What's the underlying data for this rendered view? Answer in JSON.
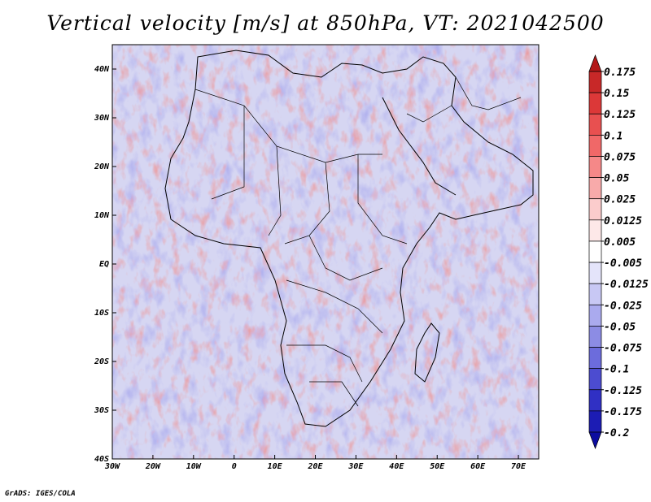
{
  "title": "Vertical velocity [m/s] at 850hPa, VT: 2021042500",
  "footer": "GrADS: IGES/COLA",
  "map": {
    "lon_range": [
      -30,
      75
    ],
    "lat_range": [
      -40,
      45
    ],
    "lon_ticks": [
      {
        "value": -30,
        "label": "30W"
      },
      {
        "value": -20,
        "label": "20W"
      },
      {
        "value": -10,
        "label": "10W"
      },
      {
        "value": 0,
        "label": "0"
      },
      {
        "value": 10,
        "label": "10E"
      },
      {
        "value": 20,
        "label": "20E"
      },
      {
        "value": 30,
        "label": "30E"
      },
      {
        "value": 40,
        "label": "40E"
      },
      {
        "value": 50,
        "label": "50E"
      },
      {
        "value": 60,
        "label": "60E"
      },
      {
        "value": 70,
        "label": "70E"
      }
    ],
    "lat_ticks": [
      {
        "value": 40,
        "label": "40N"
      },
      {
        "value": 30,
        "label": "30N"
      },
      {
        "value": 20,
        "label": "20N"
      },
      {
        "value": 10,
        "label": "10N"
      },
      {
        "value": 0,
        "label": "EQ"
      },
      {
        "value": -10,
        "label": "10S"
      },
      {
        "value": -20,
        "label": "20S"
      },
      {
        "value": -30,
        "label": "30S"
      },
      {
        "value": -40,
        "label": "40S"
      }
    ]
  },
  "colorbar": {
    "labels": [
      "0.175",
      "0.15",
      "0.125",
      "0.1",
      "0.075",
      "0.05",
      "0.025",
      "0.0125",
      "0.005",
      "-0.005",
      "-0.0125",
      "-0.025",
      "-0.05",
      "-0.075",
      "-0.1",
      "-0.125",
      "-0.175",
      "-0.2"
    ],
    "colors": [
      "#b31818",
      "#c82828",
      "#dc3838",
      "#e85050",
      "#f06868",
      "#f58888",
      "#f8aaaa",
      "#fbcccc",
      "#fde8e8",
      "#ffffff",
      "#e4e4fa",
      "#c8c8f4",
      "#aaaaee",
      "#8c8ce4",
      "#6c6cdc",
      "#4c4cd0",
      "#3030c4",
      "#1c1cb4",
      "#0c0ca0"
    ]
  },
  "colors": {
    "ocean_base": "#d6d6f2",
    "land_base": "#c9c5ec",
    "boundary": "#000000"
  }
}
